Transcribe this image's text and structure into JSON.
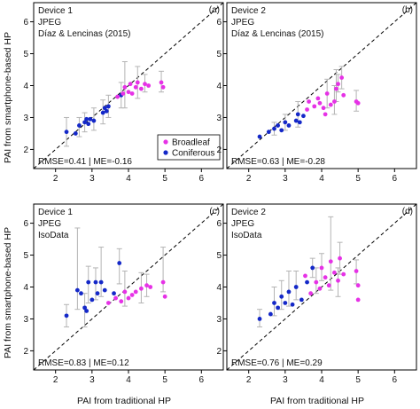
{
  "figure": {
    "xlabel": "PAI from traditional HP",
    "ylabel": "PAI from smartphone-based HP",
    "colors": {
      "broadleaf": "#e632e6",
      "coniferous": "#1428c8",
      "errorbar": "#b4b4b4",
      "frame": "#000000"
    }
  },
  "chart_data": [
    {
      "type": "scatter",
      "panel": "(a)",
      "annotations": [
        "Device 1",
        "JPEG",
        "Díaz & Lencinas (2015)"
      ],
      "stats_label": "RMSE=0.41 | ME=-0.16",
      "legend": [
        "Broadleaf",
        "Coniferous"
      ],
      "legend_position": "bottom-right",
      "xlim": [
        1.4,
        6.6
      ],
      "ylim": [
        1.4,
        6.6
      ],
      "xticks": [
        2,
        3,
        4,
        5,
        6
      ],
      "yticks": [
        2,
        3,
        4,
        5,
        6
      ],
      "reference_line": "1:1 dashed",
      "series": [
        {
          "name": "Coniferous",
          "color": "#1428c8",
          "points": [
            {
              "x": 2.3,
              "y": 2.55,
              "lo": 2.1,
              "hi": 3.0
            },
            {
              "x": 2.55,
              "y": 2.5
            },
            {
              "x": 2.65,
              "y": 2.75,
              "lo": 2.4,
              "hi": 3.0
            },
            {
              "x": 2.8,
              "y": 2.85,
              "lo": 2.55,
              "hi": 3.15
            },
            {
              "x": 2.85,
              "y": 2.95
            },
            {
              "x": 2.9,
              "y": 2.8
            },
            {
              "x": 2.95,
              "y": 2.95
            },
            {
              "x": 3.05,
              "y": 2.9,
              "lo": 2.6,
              "hi": 3.3
            },
            {
              "x": 3.3,
              "y": 3.15,
              "lo": 2.8,
              "hi": 3.55
            },
            {
              "x": 3.35,
              "y": 3.3
            },
            {
              "x": 3.4,
              "y": 3.2
            },
            {
              "x": 3.45,
              "y": 3.35,
              "lo": 3.0,
              "hi": 3.7
            },
            {
              "x": 3.8,
              "y": 3.7,
              "lo": 3.3,
              "hi": 4.1
            }
          ]
        },
        {
          "name": "Broadleaf",
          "color": "#e632e6",
          "points": [
            {
              "x": 3.7,
              "y": 3.65
            },
            {
              "x": 3.85,
              "y": 3.75
            },
            {
              "x": 3.9,
              "y": 3.95,
              "lo": 3.3,
              "hi": 4.75
            },
            {
              "x": 4.0,
              "y": 3.8
            },
            {
              "x": 4.05,
              "y": 4.05
            },
            {
              "x": 4.1,
              "y": 3.75
            },
            {
              "x": 4.2,
              "y": 3.95
            },
            {
              "x": 4.25,
              "y": 4.1,
              "lo": 3.6,
              "hi": 4.6
            },
            {
              "x": 4.35,
              "y": 3.9
            },
            {
              "x": 4.45,
              "y": 4.05,
              "lo": 3.8,
              "hi": 4.35
            },
            {
              "x": 4.55,
              "y": 4.0
            },
            {
              "x": 4.9,
              "y": 4.1,
              "lo": 3.8,
              "hi": 4.45
            },
            {
              "x": 4.95,
              "y": 3.95
            }
          ]
        }
      ]
    },
    {
      "type": "scatter",
      "panel": "(b)",
      "annotations": [
        "Device 2",
        "JPEG",
        "Díaz & Lencinas (2015)"
      ],
      "stats_label": "RMSE=0.63 | ME=-0.28",
      "xlim": [
        1.4,
        6.6
      ],
      "ylim": [
        1.4,
        6.6
      ],
      "xticks": [
        2,
        3,
        4,
        5,
        6
      ],
      "yticks": [
        2,
        3,
        4,
        5,
        6
      ],
      "reference_line": "1:1 dashed",
      "series": [
        {
          "name": "Coniferous",
          "color": "#1428c8",
          "points": [
            {
              "x": 2.3,
              "y": 2.4
            },
            {
              "x": 2.55,
              "y": 2.55
            },
            {
              "x": 2.7,
              "y": 2.65,
              "lo": 2.45,
              "hi": 2.85
            },
            {
              "x": 2.8,
              "y": 2.75
            },
            {
              "x": 2.9,
              "y": 2.6
            },
            {
              "x": 3.0,
              "y": 2.85,
              "lo": 2.6,
              "hi": 3.1
            },
            {
              "x": 3.1,
              "y": 2.75
            },
            {
              "x": 3.3,
              "y": 2.9
            },
            {
              "x": 3.35,
              "y": 3.1,
              "lo": 2.7,
              "hi": 3.5
            },
            {
              "x": 3.4,
              "y": 2.85
            },
            {
              "x": 3.5,
              "y": 3.05
            }
          ]
        },
        {
          "name": "Broadleaf",
          "color": "#e632e6",
          "points": [
            {
              "x": 3.6,
              "y": 3.25
            },
            {
              "x": 3.65,
              "y": 3.5
            },
            {
              "x": 3.8,
              "y": 3.35
            },
            {
              "x": 3.9,
              "y": 3.6
            },
            {
              "x": 3.95,
              "y": 3.45
            },
            {
              "x": 4.05,
              "y": 3.3
            },
            {
              "x": 4.1,
              "y": 3.1
            },
            {
              "x": 4.15,
              "y": 3.75,
              "lo": 3.3,
              "hi": 4.2
            },
            {
              "x": 4.25,
              "y": 3.4
            },
            {
              "x": 4.35,
              "y": 3.5,
              "lo": 3.1,
              "hi": 4.0
            },
            {
              "x": 4.4,
              "y": 3.9,
              "lo": 3.5,
              "hi": 4.5
            },
            {
              "x": 4.45,
              "y": 4.05,
              "lo": 3.8,
              "hi": 4.35
            },
            {
              "x": 4.55,
              "y": 4.25,
              "lo": 3.9,
              "hi": 4.6
            },
            {
              "x": 4.6,
              "y": 3.7
            },
            {
              "x": 4.95,
              "y": 3.5,
              "lo": 3.2,
              "hi": 3.85
            },
            {
              "x": 5.0,
              "y": 3.45
            }
          ]
        }
      ]
    },
    {
      "type": "scatter",
      "panel": "(c)",
      "annotations": [
        "Device 1",
        "JPEG",
        "IsoData"
      ],
      "stats_label": "RMSE=0.83 | ME=0.12",
      "xlim": [
        1.4,
        6.6
      ],
      "ylim": [
        1.4,
        6.6
      ],
      "xticks": [
        2,
        3,
        4,
        5,
        6
      ],
      "yticks": [
        2,
        3,
        4,
        5,
        6
      ],
      "reference_line": "1:1 dashed",
      "series": [
        {
          "name": "Coniferous",
          "color": "#1428c8",
          "points": [
            {
              "x": 2.3,
              "y": 3.1,
              "lo": 2.75,
              "hi": 3.45
            },
            {
              "x": 2.6,
              "y": 3.9,
              "lo": 3.3,
              "hi": 5.85
            },
            {
              "x": 2.7,
              "y": 3.8
            },
            {
              "x": 2.8,
              "y": 3.35,
              "lo": 2.75,
              "hi": 3.8
            },
            {
              "x": 2.85,
              "y": 3.25
            },
            {
              "x": 2.9,
              "y": 4.15,
              "lo": 3.5,
              "hi": 4.65
            },
            {
              "x": 3.0,
              "y": 3.6
            },
            {
              "x": 3.1,
              "y": 4.15,
              "lo": 3.6,
              "hi": 4.6
            },
            {
              "x": 3.15,
              "y": 3.8
            },
            {
              "x": 3.25,
              "y": 4.15,
              "lo": 3.7,
              "hi": 5.25
            },
            {
              "x": 3.35,
              "y": 3.9
            },
            {
              "x": 3.6,
              "y": 3.8
            },
            {
              "x": 3.75,
              "y": 4.75,
              "lo": 4.1,
              "hi": 5.2
            }
          ]
        },
        {
          "name": "Broadleaf",
          "color": "#e632e6",
          "points": [
            {
              "x": 3.45,
              "y": 3.5
            },
            {
              "x": 3.65,
              "y": 3.65
            },
            {
              "x": 3.8,
              "y": 3.55
            },
            {
              "x": 3.9,
              "y": 3.85,
              "lo": 3.4,
              "hi": 4.5
            },
            {
              "x": 4.0,
              "y": 3.65
            },
            {
              "x": 4.1,
              "y": 3.75
            },
            {
              "x": 4.2,
              "y": 3.85
            },
            {
              "x": 4.35,
              "y": 3.95,
              "lo": 3.5,
              "hi": 4.45
            },
            {
              "x": 4.5,
              "y": 4.05,
              "lo": 3.7,
              "hi": 4.4
            },
            {
              "x": 4.6,
              "y": 4.0
            },
            {
              "x": 4.95,
              "y": 4.15,
              "lo": 3.85,
              "hi": 5.25
            },
            {
              "x": 5.0,
              "y": 3.7
            }
          ]
        }
      ]
    },
    {
      "type": "scatter",
      "panel": "(d)",
      "annotations": [
        "Device 2",
        "JPEG",
        "IsoData"
      ],
      "stats_label": "RMSE=0.76 | ME=0.29",
      "xlim": [
        1.4,
        6.6
      ],
      "ylim": [
        1.4,
        6.6
      ],
      "xticks": [
        2,
        3,
        4,
        5,
        6
      ],
      "yticks": [
        2,
        3,
        4,
        5,
        6
      ],
      "reference_line": "1:1 dashed",
      "series": [
        {
          "name": "Coniferous",
          "color": "#1428c8",
          "points": [
            {
              "x": 2.3,
              "y": 3.0,
              "lo": 2.75,
              "hi": 3.3
            },
            {
              "x": 2.6,
              "y": 3.15
            },
            {
              "x": 2.7,
              "y": 3.5,
              "lo": 3.1,
              "hi": 4.0
            },
            {
              "x": 2.8,
              "y": 3.35
            },
            {
              "x": 2.9,
              "y": 3.7,
              "lo": 3.3,
              "hi": 4.2
            },
            {
              "x": 3.0,
              "y": 3.5
            },
            {
              "x": 3.1,
              "y": 3.85,
              "lo": 3.4,
              "hi": 4.5
            },
            {
              "x": 3.2,
              "y": 3.45
            },
            {
              "x": 3.3,
              "y": 4.0,
              "lo": 3.6,
              "hi": 4.5
            },
            {
              "x": 3.45,
              "y": 3.6
            },
            {
              "x": 3.6,
              "y": 4.15
            },
            {
              "x": 3.75,
              "y": 4.6,
              "lo": 4.3,
              "hi": 4.9
            }
          ]
        },
        {
          "name": "Broadleaf",
          "color": "#e632e6",
          "points": [
            {
              "x": 3.55,
              "y": 4.35
            },
            {
              "x": 3.7,
              "y": 3.8
            },
            {
              "x": 3.85,
              "y": 4.15,
              "lo": 3.8,
              "hi": 4.6
            },
            {
              "x": 3.95,
              "y": 3.95
            },
            {
              "x": 4.0,
              "y": 4.6,
              "lo": 4.2,
              "hi": 5.05
            },
            {
              "x": 4.1,
              "y": 4.3
            },
            {
              "x": 4.2,
              "y": 4.05
            },
            {
              "x": 4.25,
              "y": 4.8,
              "lo": 3.9,
              "hi": 6.2
            },
            {
              "x": 4.35,
              "y": 4.45
            },
            {
              "x": 4.45,
              "y": 4.2,
              "lo": 3.7,
              "hi": 4.6
            },
            {
              "x": 4.5,
              "y": 4.9,
              "lo": 4.4,
              "hi": 5.4
            },
            {
              "x": 4.6,
              "y": 4.4
            },
            {
              "x": 4.95,
              "y": 4.5,
              "lo": 4.1,
              "hi": 4.85
            },
            {
              "x": 5.0,
              "y": 4.05
            },
            {
              "x": 5.0,
              "y": 3.6
            }
          ]
        }
      ]
    }
  ]
}
